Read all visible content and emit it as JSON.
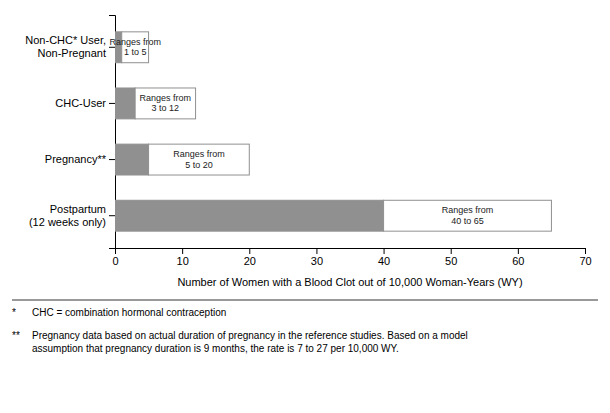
{
  "chart_data": {
    "type": "bar",
    "orientation": "horizontal",
    "categories": [
      "Postpartum\n(12 weeks only)",
      "Pregnancy**",
      "CHC-User",
      "Non-CHC* User,\nNon-Pregnant"
    ],
    "values": [
      40,
      5,
      3,
      1
    ],
    "high": [
      65,
      20,
      12,
      5
    ],
    "color": "#909090",
    "annotations": [
      "Ranges from\n40 to 65",
      "Ranges from\n5 to 20",
      "Ranges from\n3 to 12",
      "Ranges from\n1 to 5"
    ],
    "xlabel": "Number of Women with a Blood Clot out of 10,000 Woman-Years (WY)",
    "xlim": [
      0,
      70
    ],
    "xticks": [
      0,
      10,
      20,
      30,
      40,
      50,
      60,
      70
    ],
    "footnotes": [
      {
        "symbol": "*",
        "text": "CHC = combination hormonal contraception"
      },
      {
        "symbol": "**",
        "text": "Pregnancy data based on actual duration of pregnancy in the reference studies. Based on a model\nassumption that pregnancy duration is 9 months, the rate is 7 to 27 per 10,000 WY."
      }
    ]
  }
}
